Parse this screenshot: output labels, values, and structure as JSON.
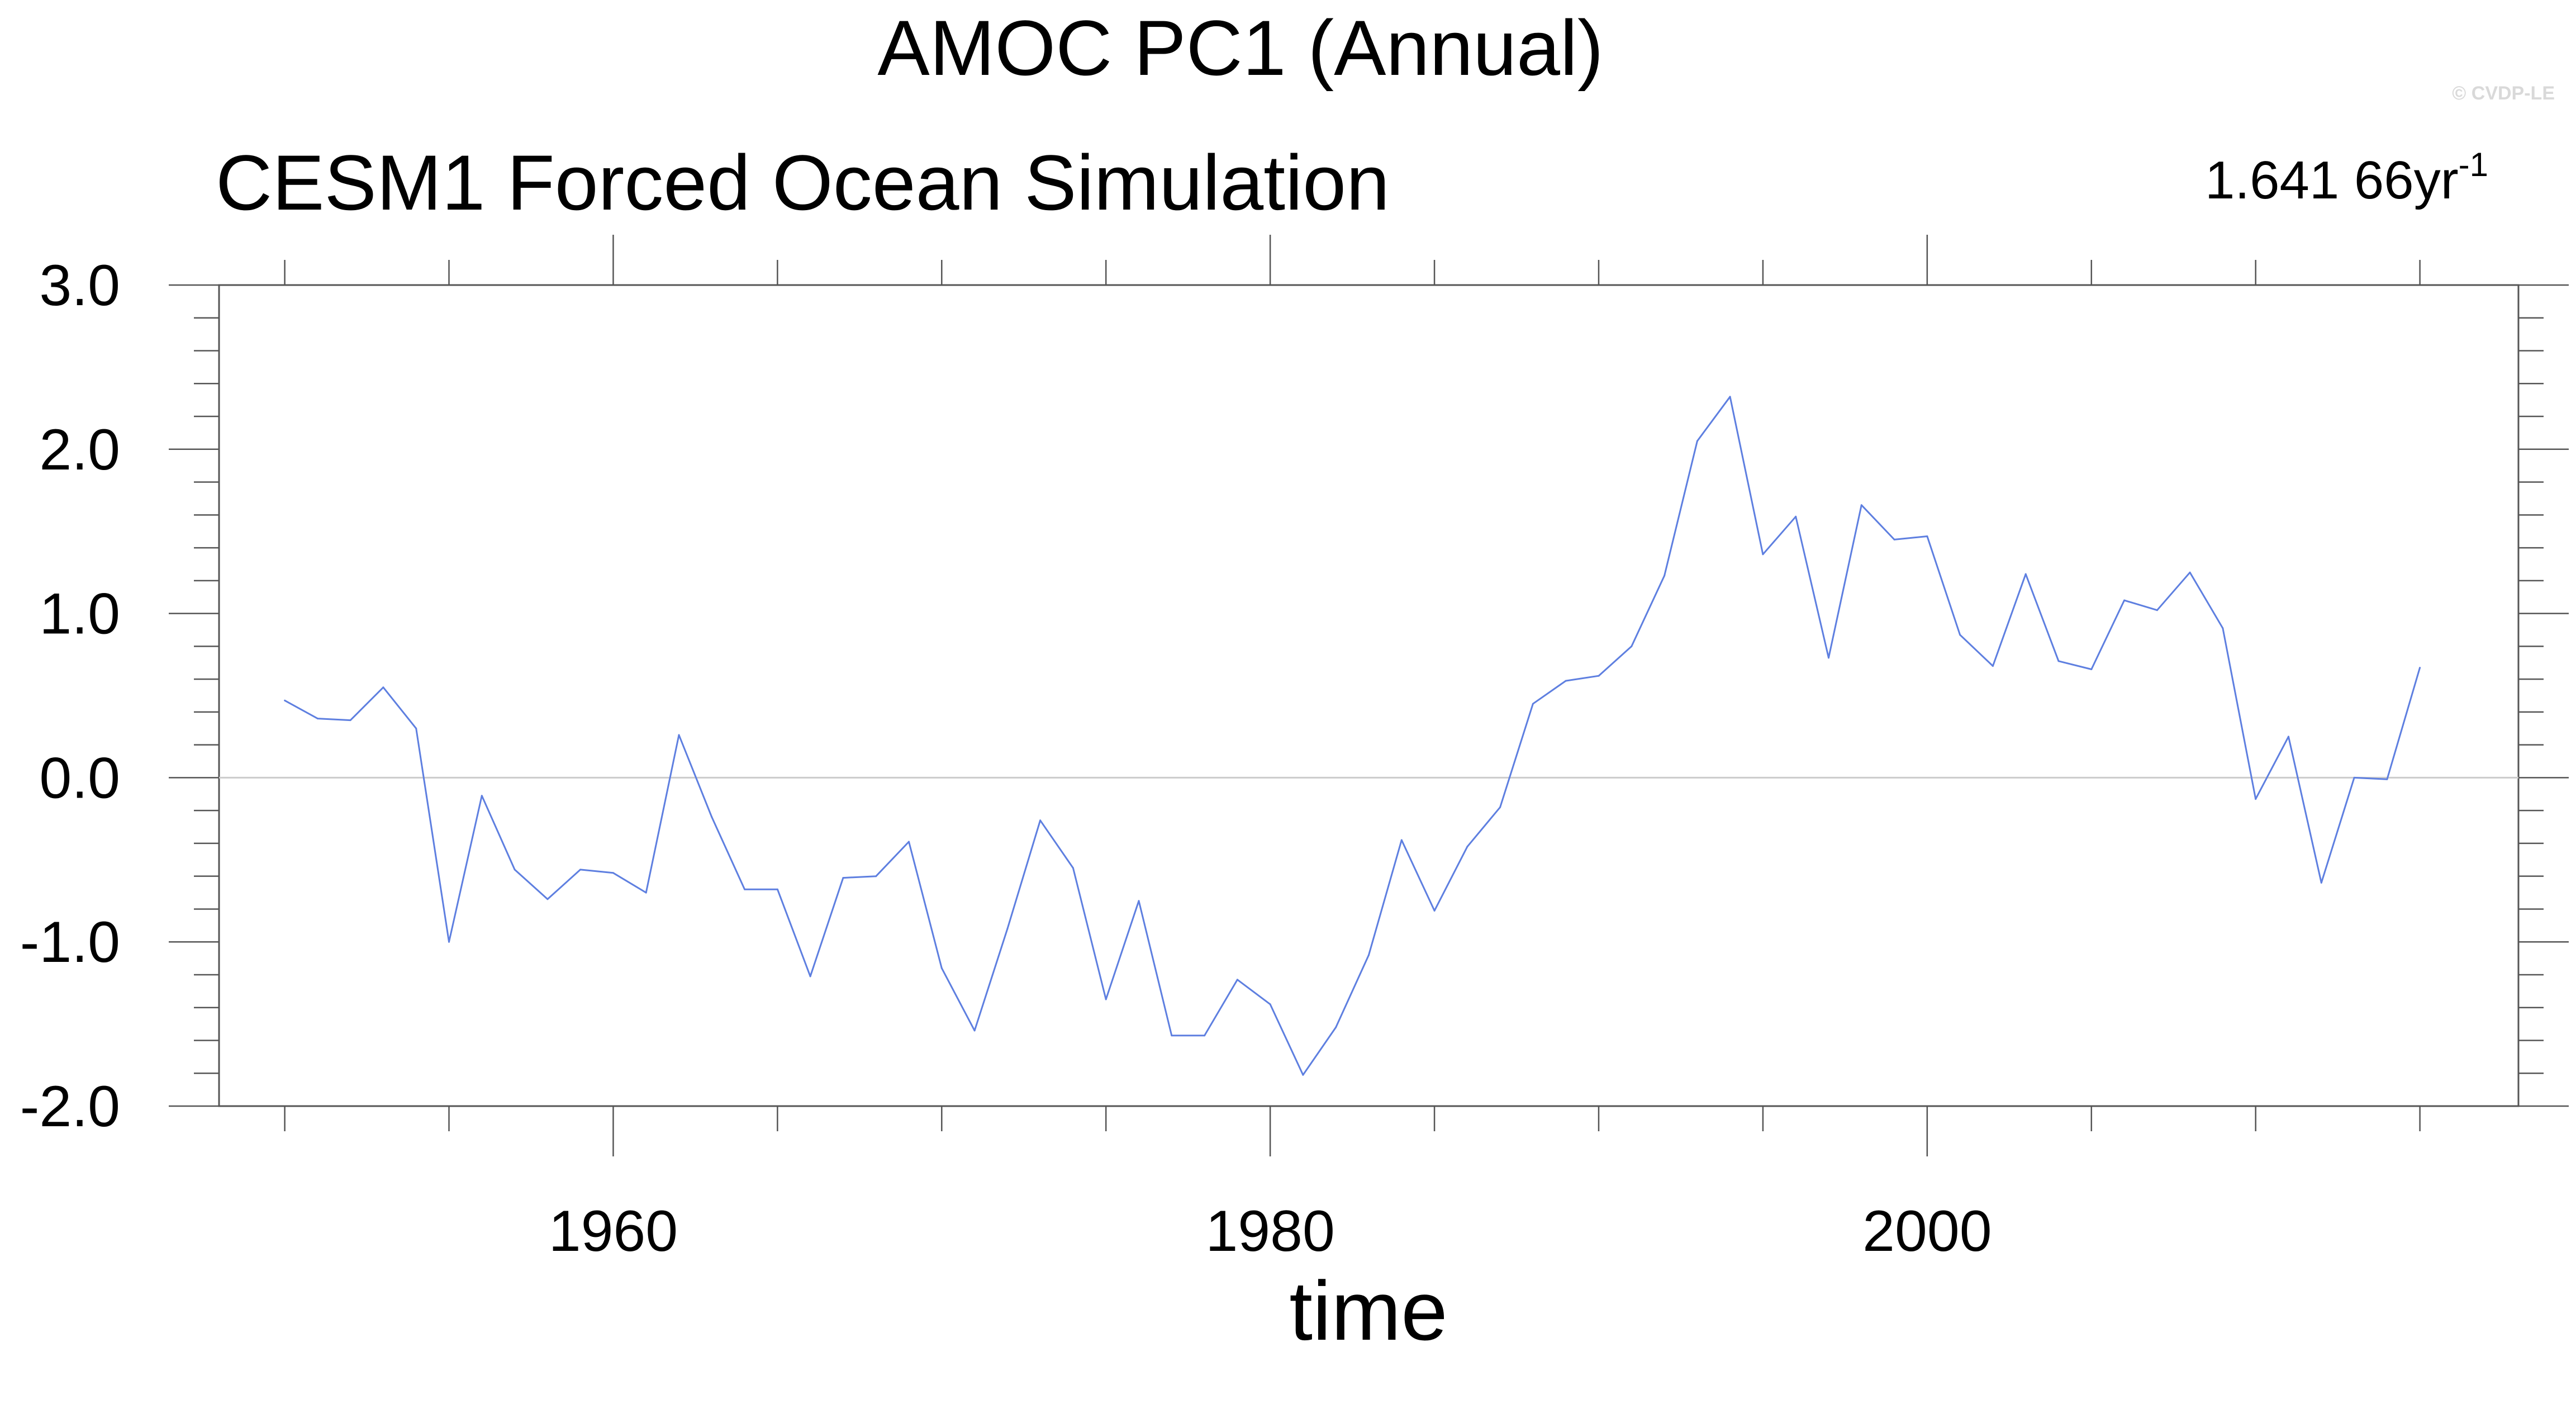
{
  "chart_data": {
    "type": "line",
    "title": "AMOC PC1 (Annual)",
    "subtitle": "CESM1 Forced Ocean Simulation",
    "trend_label": {
      "value": "1.641 66yr",
      "superscript": "-1"
    },
    "watermark": "© CVDP-LE",
    "xlabel": "time",
    "ylabel": "",
    "xlim": [
      1948,
      2018
    ],
    "ylim": [
      -2.0,
      3.0
    ],
    "x_ticks": [
      {
        "value": 1960,
        "label": "1960"
      },
      {
        "value": 1980,
        "label": "1980"
      },
      {
        "value": 2000,
        "label": "2000"
      }
    ],
    "y_ticks": [
      {
        "value": 3.0,
        "label": "3.0"
      },
      {
        "value": 2.0,
        "label": "2.0"
      },
      {
        "value": 1.0,
        "label": "1.0"
      },
      {
        "value": 0.0,
        "label": "0.0"
      },
      {
        "value": -1.0,
        "label": "-1.0"
      },
      {
        "value": -2.0,
        "label": "-2.0"
      }
    ],
    "zero_line": 0.0,
    "series": [
      {
        "name": "AMOC PC1",
        "color": "#5e7fe0",
        "x": [
          1950,
          1951,
          1952,
          1953,
          1954,
          1955,
          1956,
          1957,
          1958,
          1959,
          1960,
          1961,
          1962,
          1963,
          1964,
          1965,
          1966,
          1967,
          1968,
          1969,
          1970,
          1971,
          1972,
          1973,
          1974,
          1975,
          1976,
          1977,
          1978,
          1979,
          1980,
          1981,
          1982,
          1983,
          1984,
          1985,
          1986,
          1987,
          1988,
          1989,
          1990,
          1991,
          1992,
          1993,
          1994,
          1995,
          1996,
          1997,
          1998,
          1999,
          2000,
          2001,
          2002,
          2003,
          2004,
          2005,
          2006,
          2007,
          2008,
          2009,
          2010,
          2011,
          2012,
          2013,
          2014,
          2015
        ],
        "values": [
          0.47,
          0.36,
          0.35,
          0.55,
          0.3,
          -1.0,
          -0.11,
          -0.56,
          -0.74,
          -0.56,
          -0.58,
          -0.7,
          0.26,
          -0.24,
          -0.68,
          -0.68,
          -1.21,
          -0.61,
          -0.6,
          -0.39,
          -1.16,
          -1.54,
          -0.92,
          -0.26,
          -0.55,
          -1.35,
          -0.75,
          -1.57,
          -1.57,
          -1.23,
          -1.38,
          -1.81,
          -1.52,
          -1.08,
          -0.38,
          -0.81,
          -0.42,
          -0.18,
          0.45,
          0.59,
          0.62,
          0.8,
          1.23,
          2.05,
          2.32,
          1.36,
          1.59,
          0.73,
          1.66,
          1.45,
          1.47,
          0.87,
          0.68,
          1.24,
          0.71,
          0.66,
          1.08,
          1.02,
          1.25,
          0.91,
          -0.13,
          0.25,
          -0.64,
          0.0,
          -0.01,
          0.67
        ]
      }
    ]
  }
}
